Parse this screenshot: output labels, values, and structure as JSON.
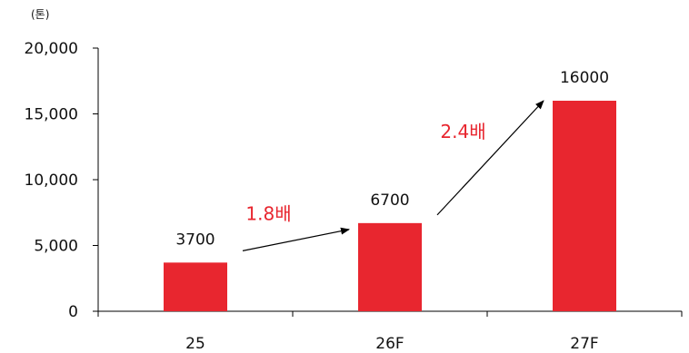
{
  "chart_data": {
    "type": "bar",
    "unit_label": "(톤)",
    "categories": [
      "25",
      "26F",
      "27F"
    ],
    "values": [
      3700,
      6700,
      16000
    ],
    "data_labels": [
      "3700",
      "6700",
      "16000"
    ],
    "ylim": [
      0,
      20000
    ],
    "yticks": [
      0,
      5000,
      10000,
      15000,
      20000
    ],
    "ytick_labels": [
      "0",
      "5,000",
      "10,000",
      "15,000",
      "20,000"
    ],
    "bar_color": "#e8262f",
    "annotation_color": "#e8262f",
    "growth_annotations": [
      {
        "from": "25",
        "to": "26F",
        "text": "1.8배"
      },
      {
        "from": "26F",
        "to": "27F",
        "text": "2.4배"
      }
    ],
    "grid": false,
    "legend": "none"
  }
}
